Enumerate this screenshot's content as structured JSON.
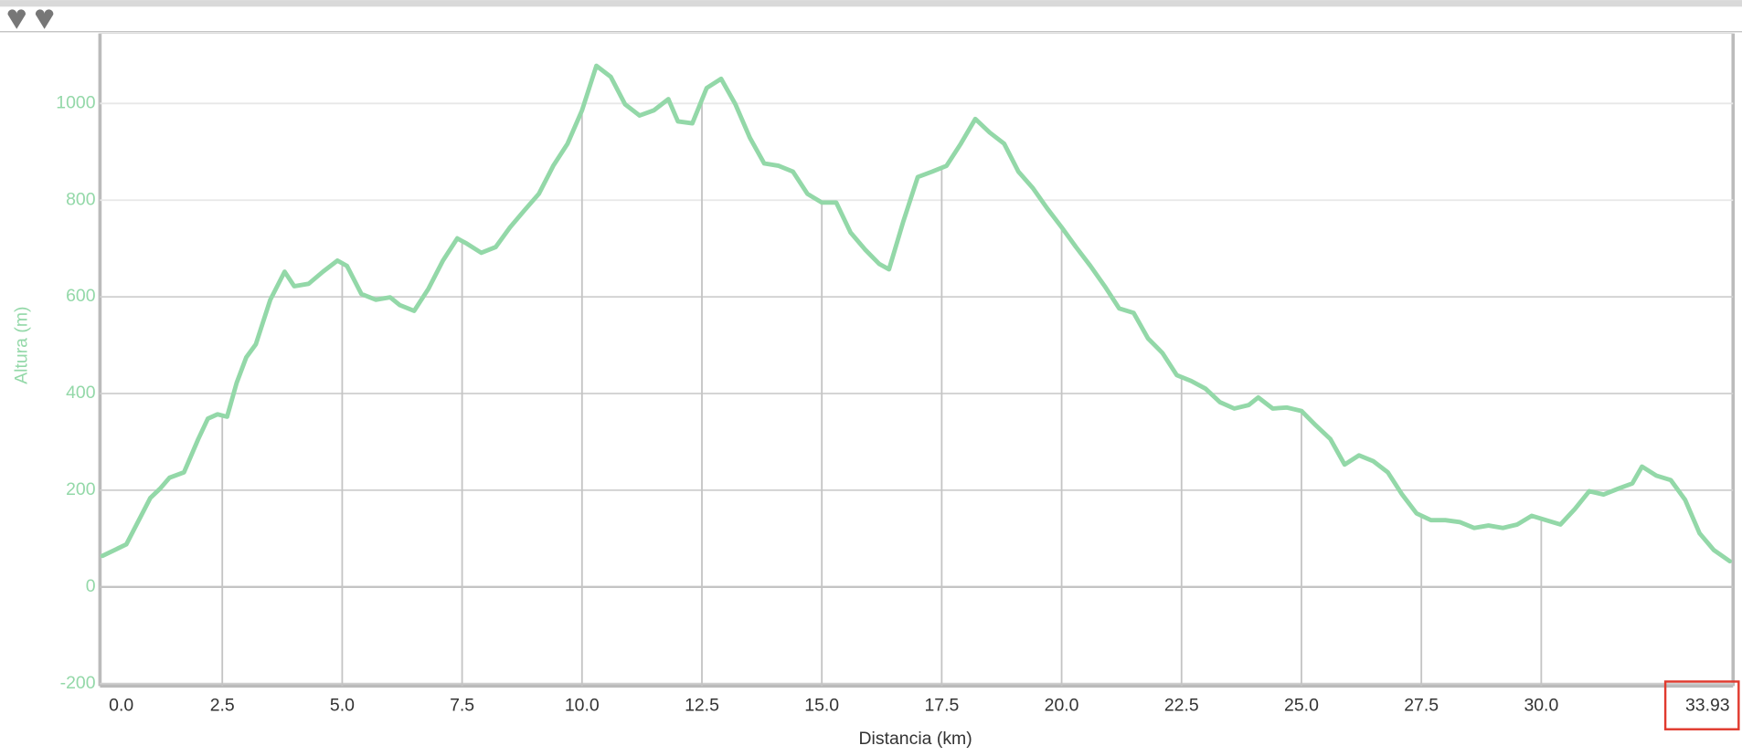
{
  "chart_data": {
    "type": "line",
    "xlabel": "Distancia (km)",
    "ylabel": "Altura (m)",
    "xlim": [
      -0.05,
      34.0
    ],
    "ylim": [
      -205,
      1145
    ],
    "xticks": [
      {
        "value": 0,
        "label": "0.0"
      },
      2.5,
      {
        "value": 5,
        "label": "5.0"
      },
      7.5,
      {
        "value": 10,
        "label": "10.0"
      },
      12.5,
      {
        "value": 15,
        "label": "15.0"
      },
      17.5,
      {
        "value": 20,
        "label": "20.0"
      },
      22.5,
      {
        "value": 25,
        "label": "25.0"
      },
      27.5,
      {
        "value": 30,
        "label": "30.0"
      },
      33.93
    ],
    "yticks": [
      -200,
      0,
      200,
      400,
      600,
      800,
      1000
    ],
    "grid": true,
    "series": [
      {
        "color": "#93d8a8",
        "x": [
          0,
          0.5,
          1.0,
          1.2,
          1.4,
          1.7,
          2.0,
          2.2,
          2.4,
          2.6,
          2.8,
          3.0,
          3.2,
          3.5,
          3.8,
          4.0,
          4.3,
          4.6,
          4.9,
          5.1,
          5.4,
          5.7,
          6.0,
          6.2,
          6.5,
          6.8,
          7.1,
          7.4,
          7.6,
          7.9,
          8.2,
          8.5,
          8.8,
          9.1,
          9.4,
          9.7,
          10.0,
          10.3,
          10.6,
          10.9,
          11.2,
          11.5,
          11.8,
          12.0,
          12.3,
          12.6,
          12.9,
          13.2,
          13.5,
          13.8,
          14.1,
          14.4,
          14.7,
          15.0,
          15.3,
          15.6,
          15.9,
          16.2,
          16.4,
          16.7,
          17.0,
          17.3,
          17.6,
          17.9,
          18.2,
          18.5,
          18.8,
          19.1,
          19.4,
          19.7,
          20.0,
          20.3,
          20.6,
          20.9,
          21.2,
          21.5,
          21.8,
          22.1,
          22.4,
          22.7,
          23.0,
          23.3,
          23.6,
          23.9,
          24.1,
          24.4,
          24.7,
          25.0,
          25.3,
          25.6,
          25.9,
          26.2,
          26.5,
          26.8,
          27.1,
          27.4,
          27.7,
          28.0,
          28.3,
          28.6,
          28.9,
          29.2,
          29.5,
          29.8,
          30.1,
          30.4,
          30.7,
          31.0,
          31.3,
          31.6,
          31.9,
          32.1,
          32.4,
          32.7,
          33.0,
          33.3,
          33.6,
          33.93
        ],
        "values": [
          64,
          88,
          184,
          203,
          226,
          237,
          306,
          348,
          357,
          352,
          422,
          475,
          502,
          594,
          652,
          622,
          627,
          652,
          675,
          664,
          606,
          594,
          599,
          583,
          571,
          617,
          675,
          721,
          710,
          691,
          703,
          744,
          779,
          813,
          871,
          917,
          986,
          1078,
          1055,
          998,
          975,
          986,
          1009,
          963,
          959,
          1032,
          1051,
          998,
          929,
          876,
          871,
          859,
          813,
          795,
          795,
          733,
          698,
          668,
          657,
          756,
          848,
          859,
          871,
          917,
          968,
          940,
          917,
          859,
          825,
          783,
          744,
          703,
          664,
          622,
          576,
          567,
          514,
          484,
          438,
          426,
          410,
          382,
          369,
          376,
          392,
          369,
          371,
          364,
          334,
          306,
          253,
          272,
          260,
          237,
          191,
          152,
          138,
          138,
          134,
          122,
          127,
          122,
          129,
          147,
          138,
          129,
          161,
          198,
          191,
          203,
          214,
          249,
          230,
          221,
          180,
          111,
          76,
          53
        ]
      }
    ]
  }
}
